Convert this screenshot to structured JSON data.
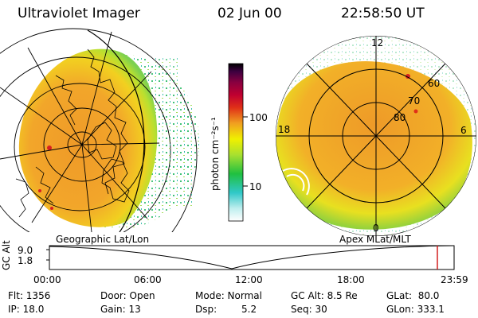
{
  "header": {
    "instrument": "Ultraviolet Imager",
    "date": "02 Jun 00",
    "time": "22:58:50 UT"
  },
  "colorbar": {
    "unit_label": "photon cm⁻²s⁻¹",
    "ticks": [
      "100",
      "10"
    ],
    "scale": "log",
    "colors": [
      "#ffffff",
      "#9fe8e8",
      "#20c8c8",
      "#22c040",
      "#a8e030",
      "#f0f000",
      "#f0a020",
      "#e03018",
      "#c00030",
      "#8a0040",
      "#3c0040",
      "#000000"
    ]
  },
  "left_map": {
    "caption": "Geographic Lat/Lon"
  },
  "right_map": {
    "caption": "Apex MLat/MLT",
    "mlt_labels": {
      "top": "12",
      "right": "6",
      "bottom": "0",
      "left": "18"
    },
    "lat_labels": [
      "60",
      "70",
      "80"
    ]
  },
  "altitude_plot": {
    "ylabel": "GC Alt",
    "yticks": [
      "9.0",
      "1.8"
    ],
    "xticks": [
      "00:00",
      "06:00",
      "12:00",
      "18:00",
      "23:59"
    ],
    "cursor_color": "#d01010"
  },
  "info": {
    "flt": "Flt: 1356",
    "ip": "IP: 18.0",
    "door": "Door: Open",
    "gain": "Gain: 13",
    "mode": "Mode: Normal",
    "dsp_label": "Dsp:",
    "dsp_value": "5.2",
    "gcalt": "GC Alt: 8.5 Re",
    "seq": "Seq: 30",
    "glat": "GLat:  80.0",
    "glon": "GLon: 333.1"
  }
}
